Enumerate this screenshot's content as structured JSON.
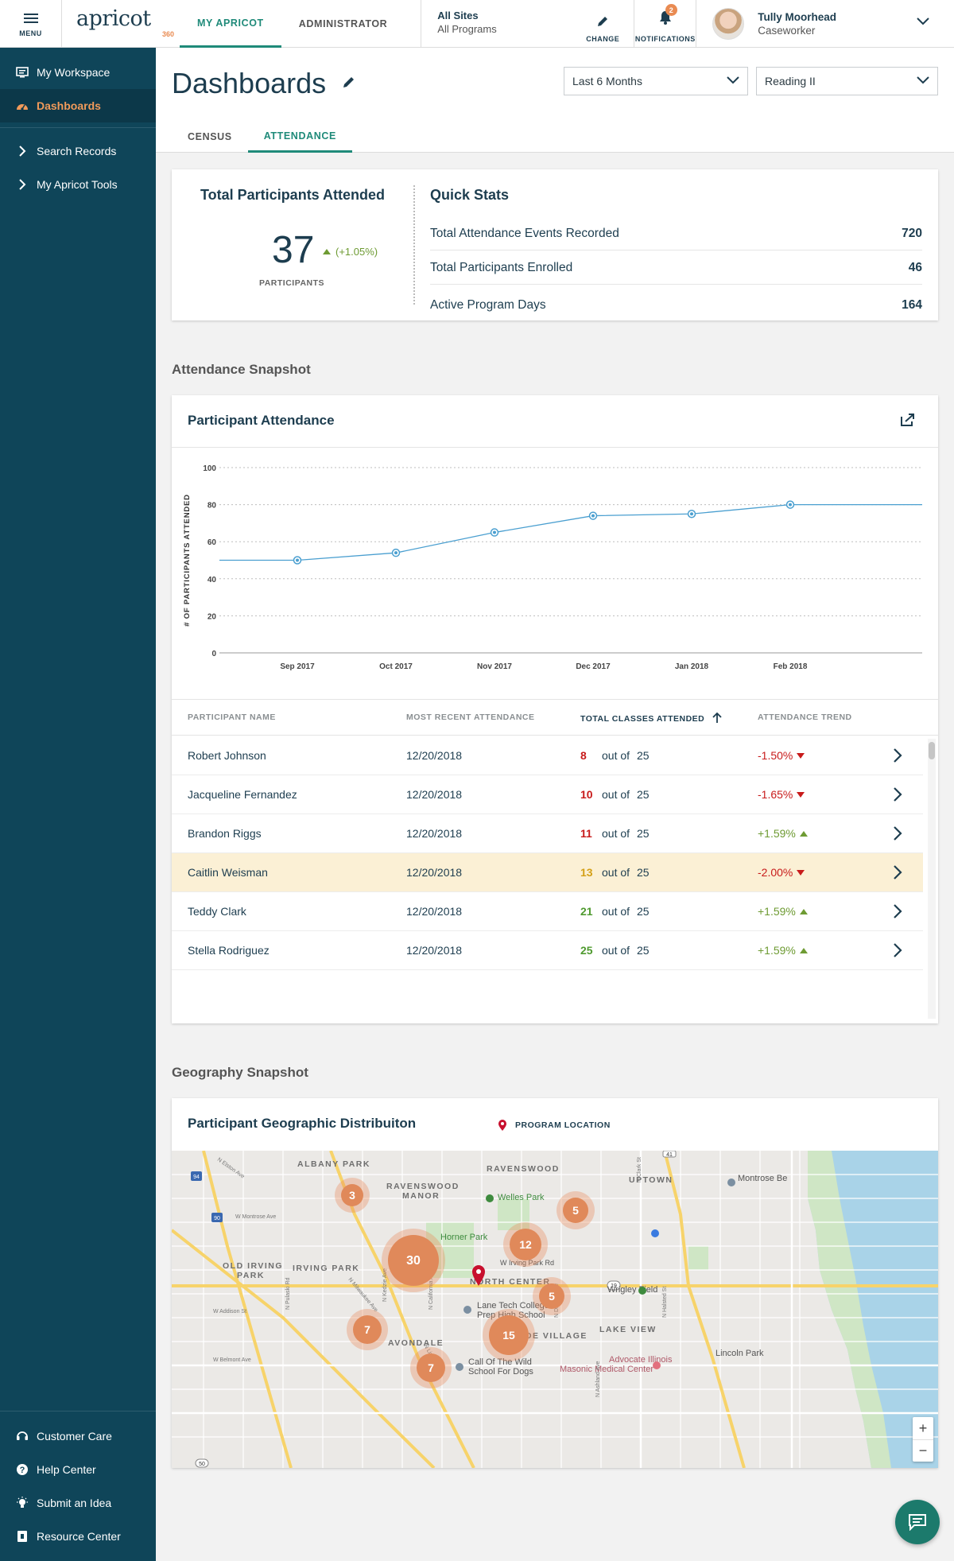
{
  "topbar": {
    "menu_label": "MENU",
    "logo_name": "apricot",
    "logo_sub": "360",
    "tabs": [
      {
        "label": "MY APRICOT"
      },
      {
        "label": "ADMINISTRATOR"
      }
    ],
    "sites_line1": "All Sites",
    "sites_line2": "All Programs",
    "change_label": "CHANGE",
    "notifications_label": "NOTIFICATIONS",
    "notifications_count": "2",
    "user_name": "Tully Moorhead",
    "user_role": "Caseworker"
  },
  "sidebar": {
    "items": [
      {
        "label": "My Workspace",
        "icon": "workspace-icon"
      },
      {
        "label": "Dashboards",
        "icon": "dashboard-gauge-icon"
      },
      {
        "label": "Search Records",
        "icon": "chevron-right-icon"
      },
      {
        "label": "My Apricot Tools",
        "icon": "chevron-right-icon"
      }
    ],
    "bottom_items": [
      {
        "label": "Customer Care",
        "icon": "headset-icon"
      },
      {
        "label": "Help Center",
        "icon": "question-icon"
      },
      {
        "label": "Submit an Idea",
        "icon": "lightbulb-icon"
      },
      {
        "label": "Resource Center",
        "icon": "book-icon"
      }
    ]
  },
  "header": {
    "title": "Dashboards",
    "period_select": "Last 6 Months",
    "program_select": "Reading II",
    "subtabs": [
      {
        "label": "CENSUS"
      },
      {
        "label": "ATTENDANCE"
      }
    ]
  },
  "stats": {
    "total_title": "Total Participants Attended",
    "total_value": "37",
    "total_change": "(+1.05%)",
    "total_unit": "PARTICIPANTS",
    "quick_title": "Quick Stats",
    "rows": [
      {
        "label": "Total Attendance Events Recorded",
        "value": "720"
      },
      {
        "label": "Total Participants Enrolled",
        "value": "46"
      },
      {
        "label": "Active Program Days",
        "value": "164"
      }
    ]
  },
  "attendance": {
    "section_title": "Attendance Snapshot",
    "card_title": "Participant Attendance",
    "columns": [
      "PARTICIPANT NAME",
      "MOST RECENT ATTENDANCE",
      "TOTAL CLASSES ATTENDED",
      "ATTENDANCE TREND"
    ],
    "out_of_label": "out of",
    "rows": [
      {
        "name": "Robert Johnson",
        "date": "12/20/2018",
        "count": "8",
        "total": "25",
        "trend": "-1.50%",
        "dir": "down",
        "count_color": "#c81b1b"
      },
      {
        "name": "Jacqueline Fernandez",
        "date": "12/20/2018",
        "count": "10",
        "total": "25",
        "trend": "-1.65%",
        "dir": "down",
        "count_color": "#c81b1b"
      },
      {
        "name": "Brandon Riggs",
        "date": "12/20/2018",
        "count": "11",
        "total": "25",
        "trend": "+1.59%",
        "dir": "up",
        "count_color": "#c81b1b"
      },
      {
        "name": "Caitlin Weisman",
        "date": "12/20/2018",
        "count": "13",
        "total": "25",
        "trend": "-2.00%",
        "dir": "down",
        "count_color": "#d4a017"
      },
      {
        "name": "Teddy Clark",
        "date": "12/20/2018",
        "count": "21",
        "total": "25",
        "trend": "+1.59%",
        "dir": "up",
        "count_color": "#4f9a2f"
      },
      {
        "name": "Stella Rodriguez",
        "date": "12/20/2018",
        "count": "25",
        "total": "25",
        "trend": "+1.59%",
        "dir": "up",
        "count_color": "#4f9a2f"
      }
    ]
  },
  "chart_data": {
    "type": "line",
    "title": "Participant Attendance",
    "ylabel": "# OF PARTICIPANTS ATTENDED",
    "xlabel": "",
    "categories": [
      "Sep 2017",
      "Oct 2017",
      "Nov 2017",
      "Dec 2017",
      "Jan 2018",
      "Feb 2018"
    ],
    "series": [
      {
        "values": [
          50,
          54,
          65,
          74,
          75,
          80
        ]
      }
    ],
    "ylim": [
      0,
      100
    ],
    "yticks": [
      0,
      20,
      40,
      60,
      80,
      100
    ],
    "grid": true,
    "line_color": "#4a9fd0"
  },
  "geography": {
    "section_title": "Geography Snapshot",
    "card_title": "Participant Geographic Distribuiton",
    "legend_label": "PROGRAM LOCATION",
    "clusters": [
      "3",
      "5",
      "12",
      "30",
      "5",
      "7",
      "15",
      "7"
    ],
    "labels": {
      "albany_park": "ALBANY PARK",
      "ravenswood": "RAVENSWOOD",
      "uptown": "UPTOWN",
      "montrose_beach": "Montrose Be",
      "ravenswood_manor_1": "RAVENSWOOD",
      "ravenswood_manor_2": "MANOR",
      "welles_park": "Welles Park",
      "horner_park": "Horner Park",
      "old_irving_1": "OLD IRVING",
      "old_irving_2": "PARK",
      "irving_park": "IRVING PARK",
      "north_center": "NORTH CENTER",
      "wrigley_field": "Wrigley Field",
      "lane_tech_1": "Lane Tech College",
      "lane_tech_2": "Prep High School",
      "lake_view": "LAKE VIEW",
      "roscoe": "ROSCOE VILLAGE",
      "avondale": "AVONDALE",
      "advocate_1": "Advocate Illinois",
      "advocate_2": "Masonic Medical Center",
      "lincoln_park": "Lincoln Park",
      "call_wild_1": "Call Of The Wild",
      "call_wild_2": "School For Dogs",
      "w_irving_park_rd": "W Irving Park Rd",
      "w_montrose_ave": "W Montrose Ave",
      "w_addison_st": "W Addison St",
      "w_belmont_ave": "W Belmont Ave",
      "n_elston_ave": "N Elston Ave",
      "n_pulaski_rd": "N Pulaski Rd",
      "n_kedzie_ave": "N Kedzie Ave",
      "n_california_ave": "N California Ave",
      "n_damen_ave": "N Damen Ave",
      "n_halsted_st": "N Halsted St",
      "n_clark_st": "N Clark St",
      "n_lincoln_ave": "N Lincoln Ave",
      "n_milwaukee_ave": "N Milwaukee Ave",
      "n_ashland_ave": "N Ashland Ave",
      "i94": "94",
      "i90": "90",
      "us41": "41",
      "rt19": "19",
      "rt50": "50"
    },
    "zoom_in": "+",
    "zoom_out": "−"
  }
}
